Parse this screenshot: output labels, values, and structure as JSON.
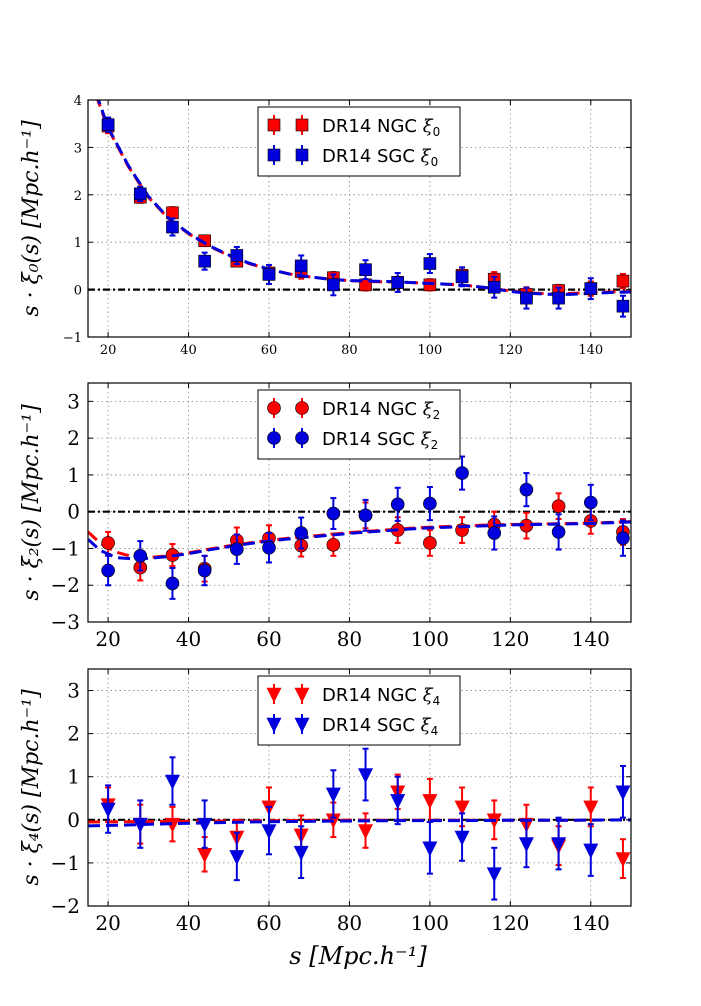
{
  "figure": {
    "x_axis_label": "s [Mpc.h⁻¹]",
    "colors": {
      "ngc": "#ff0000",
      "sgc": "#0000dd",
      "zero_line": "#000000",
      "grid": "#888888"
    }
  },
  "chart_data": [
    {
      "type": "scatter",
      "id": "xi0",
      "ylabel": "s · ξ₀(s) [Mpc.h⁻¹]",
      "xlim": [
        15,
        150
      ],
      "ylim": [
        -1,
        4
      ],
      "xticks": [
        20,
        40,
        60,
        80,
        100,
        120,
        140
      ],
      "xtick_labels": [
        "20",
        "40",
        "60",
        "80",
        "100",
        "120",
        "140"
      ],
      "yticks": [
        -1,
        0,
        1,
        2,
        3,
        4
      ],
      "ytick_labels": [
        "−1",
        "0",
        "1",
        "2",
        "3",
        "4"
      ],
      "show_xtick_labels": true,
      "tick_font": "small",
      "grid": true,
      "zero_line": true,
      "legend_position": "top-center",
      "x": [
        20,
        28,
        36,
        44,
        52,
        60,
        68,
        76,
        84,
        92,
        100,
        108,
        116,
        124,
        132,
        140,
        148
      ],
      "series": [
        {
          "name": "DR14 NGC ξ0",
          "legend_label": "DR14 NGC",
          "legend_sub": "0",
          "color": "#ff0000",
          "marker": "square",
          "values": [
            3.45,
            1.95,
            1.62,
            1.03,
            0.6,
            0.35,
            0.38,
            0.25,
            0.1,
            0.15,
            0.1,
            0.3,
            0.22,
            -0.1,
            -0.02,
            0.02,
            0.18
          ],
          "errors": [
            0.15,
            0.12,
            0.12,
            0.1,
            0.1,
            0.12,
            0.15,
            0.12,
            0.12,
            0.12,
            0.12,
            0.12,
            0.15,
            0.15,
            0.12,
            0.15,
            0.15
          ],
          "model": [
            [
              17,
              4.1
            ],
            [
              20,
              3.4
            ],
            [
              25,
              2.6
            ],
            [
              30,
              1.95
            ],
            [
              35,
              1.5
            ],
            [
              40,
              1.18
            ],
            [
              45,
              0.92
            ],
            [
              50,
              0.72
            ],
            [
              55,
              0.55
            ],
            [
              60,
              0.43
            ],
            [
              65,
              0.33
            ],
            [
              70,
              0.27
            ],
            [
              75,
              0.22
            ],
            [
              80,
              0.19
            ],
            [
              85,
              0.17
            ],
            [
              90,
              0.16
            ],
            [
              95,
              0.15
            ],
            [
              100,
              0.13
            ],
            [
              105,
              0.11
            ],
            [
              110,
              0.08
            ],
            [
              115,
              0.03
            ],
            [
              120,
              -0.03
            ],
            [
              125,
              -0.07
            ],
            [
              130,
              -0.09
            ],
            [
              135,
              -0.08
            ],
            [
              140,
              -0.06
            ],
            [
              145,
              -0.05
            ],
            [
              150,
              -0.04
            ]
          ]
        },
        {
          "name": "DR14 SGC ξ0",
          "legend_label": "DR14 SGC",
          "legend_sub": "0",
          "color": "#0000dd",
          "marker": "square",
          "values": [
            3.48,
            2.02,
            1.32,
            0.6,
            0.72,
            0.32,
            0.5,
            0.1,
            0.42,
            0.15,
            0.55,
            0.27,
            0.05,
            -0.18,
            -0.18,
            0.02,
            -0.35
          ],
          "errors": [
            0.15,
            0.15,
            0.18,
            0.18,
            0.18,
            0.2,
            0.22,
            0.22,
            0.2,
            0.2,
            0.2,
            0.2,
            0.22,
            0.22,
            0.22,
            0.22,
            0.22
          ],
          "model": [
            [
              17,
              4.15
            ],
            [
              20,
              3.42
            ],
            [
              25,
              2.62
            ],
            [
              30,
              1.97
            ],
            [
              35,
              1.51
            ],
            [
              40,
              1.19
            ],
            [
              45,
              0.93
            ],
            [
              50,
              0.73
            ],
            [
              55,
              0.56
            ],
            [
              60,
              0.43
            ],
            [
              65,
              0.33
            ],
            [
              70,
              0.27
            ],
            [
              75,
              0.22
            ],
            [
              80,
              0.19
            ],
            [
              85,
              0.18
            ],
            [
              90,
              0.17
            ],
            [
              95,
              0.15
            ],
            [
              100,
              0.13
            ],
            [
              105,
              0.11
            ],
            [
              110,
              0.08
            ],
            [
              115,
              0.03
            ],
            [
              120,
              -0.04
            ],
            [
              125,
              -0.08
            ],
            [
              130,
              -0.1
            ],
            [
              135,
              -0.1
            ],
            [
              140,
              -0.08
            ],
            [
              145,
              -0.06
            ],
            [
              150,
              -0.05
            ]
          ]
        }
      ]
    },
    {
      "type": "scatter",
      "id": "xi2",
      "ylabel": "s · ξ₂(s) [Mpc.h⁻¹]",
      "xlim": [
        15,
        150
      ],
      "ylim": [
        -3,
        3.5
      ],
      "xticks": [
        20,
        40,
        60,
        80,
        100,
        120,
        140
      ],
      "xtick_labels": [
        "20",
        "40",
        "60",
        "80",
        "100",
        "120",
        "140"
      ],
      "yticks": [
        -3,
        -2,
        -1,
        0,
        1,
        2,
        3
      ],
      "ytick_labels": [
        "−3",
        "−2",
        "−1",
        "0",
        "1",
        "2",
        "3"
      ],
      "show_xtick_labels": true,
      "tick_font": "large",
      "grid": true,
      "zero_line": true,
      "legend_position": "top-center",
      "x": [
        20,
        28,
        36,
        44,
        52,
        60,
        68,
        76,
        84,
        92,
        100,
        108,
        116,
        124,
        132,
        140,
        148
      ],
      "series": [
        {
          "name": "DR14 NGC ξ2",
          "legend_label": "DR14 NGC",
          "legend_sub": "2",
          "color": "#ff0000",
          "marker": "circle",
          "values": [
            -0.85,
            -1.52,
            -1.18,
            -1.55,
            -0.78,
            -0.72,
            -0.92,
            -0.9,
            -0.1,
            -0.5,
            -0.85,
            -0.5,
            -0.35,
            -0.38,
            0.15,
            -0.25,
            -0.55
          ],
          "errors": [
            0.3,
            0.35,
            0.3,
            0.35,
            0.35,
            0.35,
            0.3,
            0.3,
            0.35,
            0.35,
            0.35,
            0.35,
            0.35,
            0.35,
            0.35,
            0.35,
            0.35
          ],
          "model": [
            [
              15,
              -0.55
            ],
            [
              18,
              -0.85
            ],
            [
              22,
              -1.1
            ],
            [
              26,
              -1.22
            ],
            [
              30,
              -1.25
            ],
            [
              35,
              -1.2
            ],
            [
              40,
              -1.12
            ],
            [
              45,
              -1.02
            ],
            [
              50,
              -0.93
            ],
            [
              55,
              -0.85
            ],
            [
              60,
              -0.78
            ],
            [
              65,
              -0.72
            ],
            [
              70,
              -0.67
            ],
            [
              75,
              -0.62
            ],
            [
              80,
              -0.57
            ],
            [
              85,
              -0.53
            ],
            [
              90,
              -0.49
            ],
            [
              95,
              -0.45
            ],
            [
              100,
              -0.42
            ],
            [
              105,
              -0.4
            ],
            [
              110,
              -0.38
            ],
            [
              115,
              -0.36
            ],
            [
              120,
              -0.35
            ],
            [
              125,
              -0.34
            ],
            [
              130,
              -0.33
            ],
            [
              135,
              -0.32
            ],
            [
              140,
              -0.31
            ],
            [
              145,
              -0.29
            ],
            [
              150,
              -0.27
            ]
          ]
        },
        {
          "name": "DR14 SGC ξ2",
          "legend_label": "DR14 SGC",
          "legend_sub": "2",
          "color": "#0000dd",
          "marker": "circle",
          "values": [
            -1.6,
            -1.2,
            -1.95,
            -1.6,
            -1.02,
            -0.98,
            -0.58,
            -0.05,
            -0.1,
            0.2,
            0.22,
            1.05,
            -0.58,
            0.6,
            -0.55,
            0.25,
            -0.72
          ],
          "errors": [
            0.4,
            0.4,
            0.42,
            0.4,
            0.4,
            0.4,
            0.42,
            0.42,
            0.42,
            0.45,
            0.45,
            0.45,
            0.45,
            0.45,
            0.48,
            0.48,
            0.48
          ],
          "model": [
            [
              15,
              -0.75
            ],
            [
              18,
              -1.05
            ],
            [
              22,
              -1.25
            ],
            [
              26,
              -1.28
            ],
            [
              30,
              -1.27
            ],
            [
              35,
              -1.22
            ],
            [
              40,
              -1.14
            ],
            [
              45,
              -1.04
            ],
            [
              50,
              -0.95
            ],
            [
              55,
              -0.87
            ],
            [
              60,
              -0.8
            ],
            [
              65,
              -0.74
            ],
            [
              70,
              -0.69
            ],
            [
              75,
              -0.64
            ],
            [
              80,
              -0.59
            ],
            [
              85,
              -0.55
            ],
            [
              90,
              -0.51
            ],
            [
              95,
              -0.47
            ],
            [
              100,
              -0.44
            ],
            [
              105,
              -0.42
            ],
            [
              110,
              -0.4
            ],
            [
              115,
              -0.38
            ],
            [
              120,
              -0.36
            ],
            [
              125,
              -0.35
            ],
            [
              130,
              -0.34
            ],
            [
              135,
              -0.33
            ],
            [
              140,
              -0.32
            ],
            [
              145,
              -0.3
            ],
            [
              150,
              -0.28
            ]
          ]
        }
      ]
    },
    {
      "type": "scatter",
      "id": "xi4",
      "ylabel": "s · ξ₄(s) [Mpc.h⁻¹]",
      "xlim": [
        15,
        150
      ],
      "ylim": [
        -2,
        3.5
      ],
      "xticks": [
        20,
        40,
        60,
        80,
        100,
        120,
        140
      ],
      "xtick_labels": [
        "20",
        "40",
        "60",
        "80",
        "100",
        "120",
        "140"
      ],
      "yticks": [
        -2,
        -1,
        0,
        1,
        2,
        3
      ],
      "ytick_labels": [
        "−2",
        "−1",
        "0",
        "1",
        "2",
        "3"
      ],
      "show_xtick_labels": true,
      "tick_font": "large",
      "grid": true,
      "zero_line": true,
      "legend_position": "top-center",
      "x": [
        20,
        28,
        36,
        44,
        52,
        60,
        68,
        76,
        84,
        92,
        100,
        108,
        116,
        124,
        132,
        140,
        148
      ],
      "series": [
        {
          "name": "DR14 NGC ξ4",
          "legend_label": "DR14 NGC",
          "legend_sub": "4",
          "color": "#ff0000",
          "marker": "triangle_down",
          "values": [
            0.35,
            -0.1,
            -0.1,
            -0.8,
            -0.4,
            0.3,
            -0.35,
            0.0,
            -0.25,
            0.65,
            0.45,
            0.3,
            0.0,
            -0.1,
            -0.6,
            0.3,
            -0.9
          ],
          "errors": [
            0.4,
            0.45,
            0.4,
            0.4,
            0.4,
            0.45,
            0.45,
            0.4,
            0.4,
            0.4,
            0.5,
            0.45,
            0.45,
            0.45,
            0.45,
            0.45,
            0.45
          ],
          "model": [
            [
              15,
              -0.05
            ],
            [
              30,
              -0.04
            ],
            [
              45,
              -0.03
            ],
            [
              60,
              -0.02
            ],
            [
              75,
              -0.01
            ],
            [
              90,
              -0.01
            ],
            [
              105,
              -0.01
            ],
            [
              120,
              -0.01
            ],
            [
              135,
              -0.01
            ],
            [
              150,
              0.0
            ]
          ]
        },
        {
          "name": "DR14 SGC ξ4",
          "legend_label": "DR14 SGC",
          "legend_sub": "4",
          "color": "#0000dd",
          "marker": "triangle_down",
          "values": [
            0.25,
            -0.1,
            0.9,
            -0.1,
            -0.85,
            -0.25,
            -0.75,
            0.6,
            1.05,
            0.45,
            -0.65,
            -0.4,
            -1.25,
            -0.55,
            -0.55,
            -0.7,
            0.65
          ],
          "errors": [
            0.55,
            0.55,
            0.55,
            0.55,
            0.55,
            0.55,
            0.6,
            0.55,
            0.6,
            0.55,
            0.6,
            0.55,
            0.6,
            0.55,
            0.6,
            0.6,
            0.6
          ],
          "model": [
            [
              15,
              -0.14
            ],
            [
              25,
              -0.12
            ],
            [
              35,
              -0.09
            ],
            [
              45,
              -0.07
            ],
            [
              55,
              -0.05
            ],
            [
              65,
              -0.04
            ],
            [
              75,
              -0.03
            ],
            [
              90,
              -0.02
            ],
            [
              105,
              -0.02
            ],
            [
              120,
              -0.01
            ],
            [
              135,
              -0.01
            ],
            [
              150,
              0.0
            ]
          ]
        }
      ]
    }
  ]
}
